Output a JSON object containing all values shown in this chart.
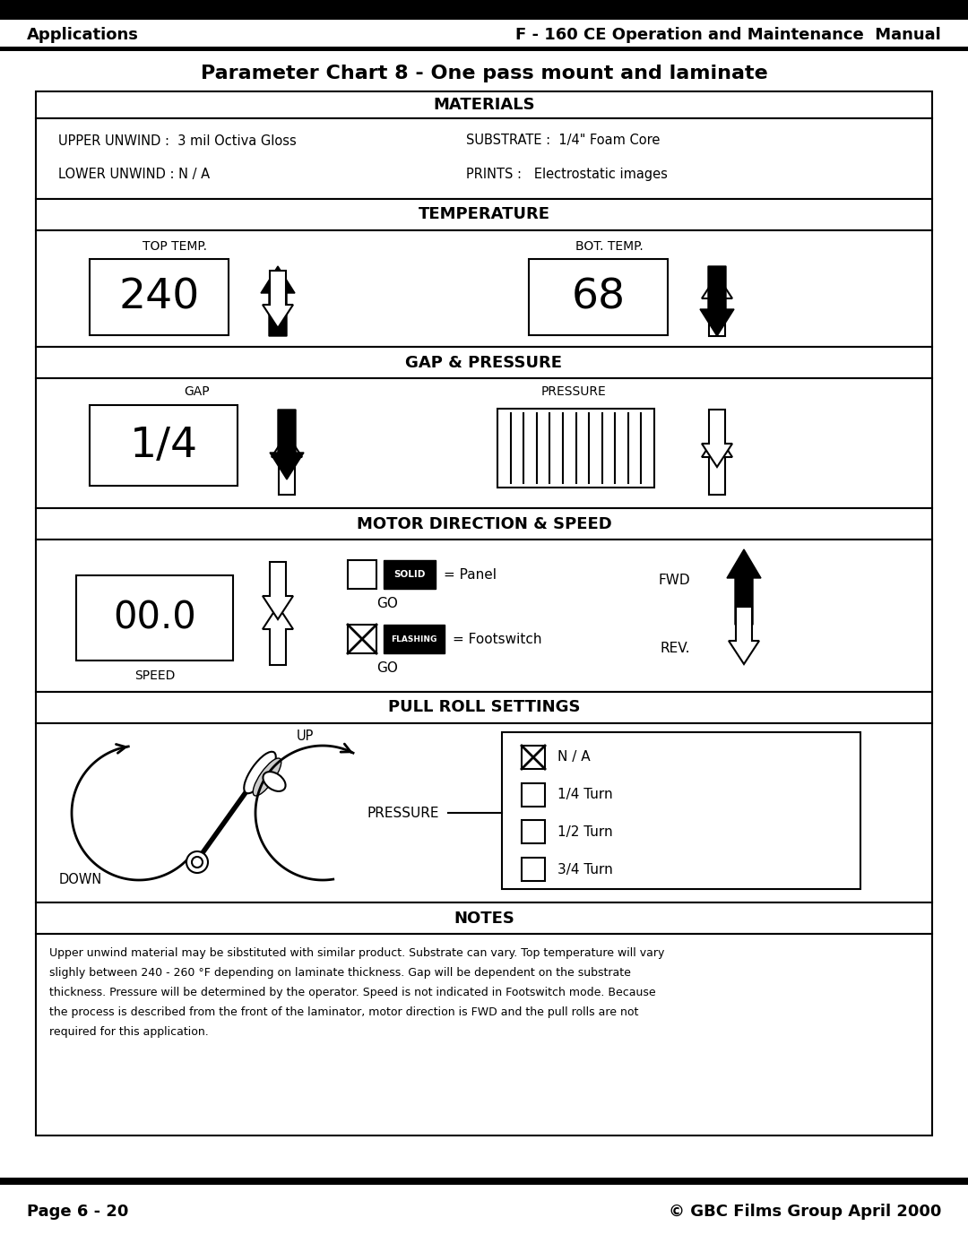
{
  "title_header_left": "Applications",
  "title_header_right": "F - 160 CE Operation and Maintenance  Manual",
  "chart_title": "Parameter Chart 8 - One pass mount and laminate",
  "materials_header": "MATERIALS",
  "upper_unwind": "UPPER UNWIND :  3 mil Octiva Gloss",
  "substrate": "SUBSTRATE :  1/4\" Foam Core",
  "lower_unwind": "LOWER UNWIND : N / A",
  "prints": "PRINTS :   Electrostatic images",
  "temperature_header": "TEMPERATURE",
  "top_temp_label": "TOP TEMP.",
  "top_temp_value": "240",
  "bot_temp_label": "BOT. TEMP.",
  "bot_temp_value": "68",
  "gap_pressure_header": "GAP & PRESSURE",
  "gap_label": "GAP",
  "gap_value": "1/4",
  "pressure_label": "PRESSURE",
  "motor_header": "MOTOR DIRECTION & SPEED",
  "speed_value": "00.0",
  "speed_label": "SPEED",
  "solid_label": "= Panel",
  "solid_go": "GO",
  "flash_label": "= Footswitch",
  "flash_go": "GO",
  "fwd_label": "FWD",
  "rev_label": "REV.",
  "pull_roll_header": "PULL ROLL SETTINGS",
  "down_label": "DOWN",
  "up_label": "UP",
  "pressure_pull_label": "PRESSURE",
  "na_option": "N / A",
  "quarter_turn": "1/4 Turn",
  "half_turn": "1/2 Turn",
  "three_quarter_turn": "3/4 Turn",
  "notes_header": "NOTES",
  "notes_text": "Upper unwind material may be sibstituted with similar product. Substrate can vary. Top temperature will vary\nslighly between 240 - 260 °F depending on laminate thickness. Gap will be dependent on the substrate\nthickness. Pressure will be determined by the operator. Speed is not indicated in Footswitch mode. Because\nthe process is described from the front of the laminator, motor direction is FWD and the pull rolls are not\nrequired for this application.",
  "footer_left": "Page 6 - 20",
  "footer_right": "© GBC Films Group April 2000",
  "bg_color": "#ffffff"
}
